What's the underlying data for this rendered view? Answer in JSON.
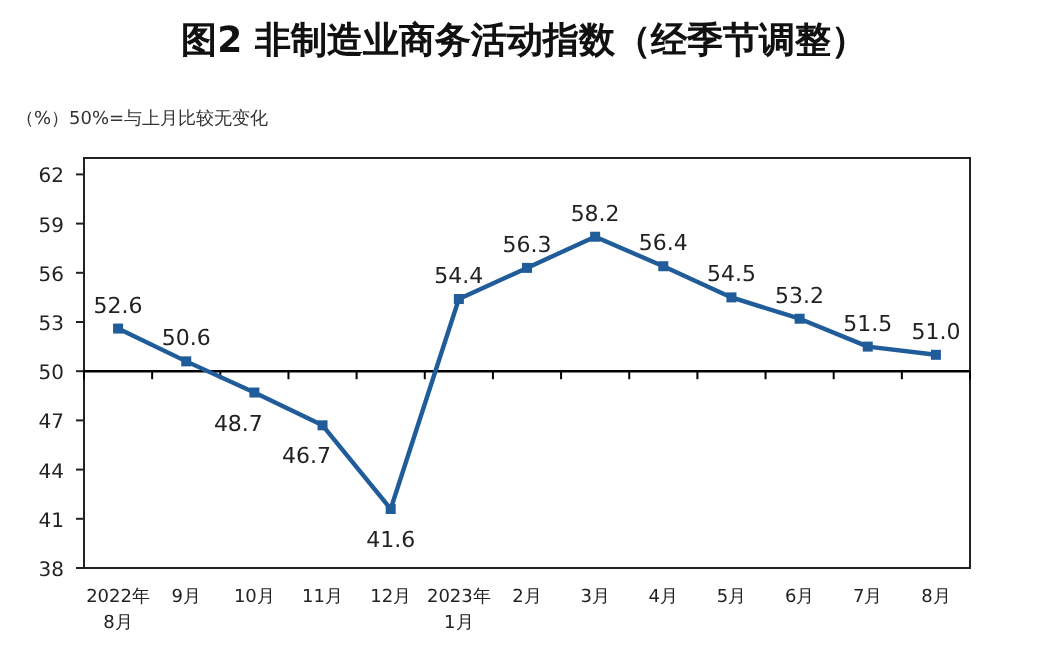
{
  "chart_data": {
    "type": "line",
    "title": "图2 非制造业商务活动指数（经季节调整）",
    "subtitle": "（%）50%=与上月比较无变化",
    "categories": [
      "2022年\n8月",
      "9月",
      "10月",
      "11月",
      "12月",
      "2023年\n1月",
      "2月",
      "3月",
      "4月",
      "5月",
      "6月",
      "7月",
      "8月"
    ],
    "series": [
      {
        "color": "#1f5c99",
        "values": [
          52.6,
          50.6,
          48.7,
          46.7,
          41.6,
          54.4,
          56.3,
          58.2,
          56.4,
          54.5,
          53.2,
          51.5,
          51.0
        ],
        "value_labels": [
          "52.6",
          "50.6",
          "48.7",
          "46.7",
          "41.6",
          "54.4",
          "56.3",
          "58.2",
          "56.4",
          "54.5",
          "53.2",
          "51.5",
          "51.0"
        ]
      }
    ],
    "ylim": [
      38,
      63
    ],
    "yticks": [
      38,
      41,
      44,
      47,
      50,
      53,
      56,
      59,
      62
    ],
    "ref_lines": [
      {
        "axis": "y",
        "value": 50,
        "color": "#000000"
      }
    ],
    "marker": "square",
    "grid": false
  }
}
